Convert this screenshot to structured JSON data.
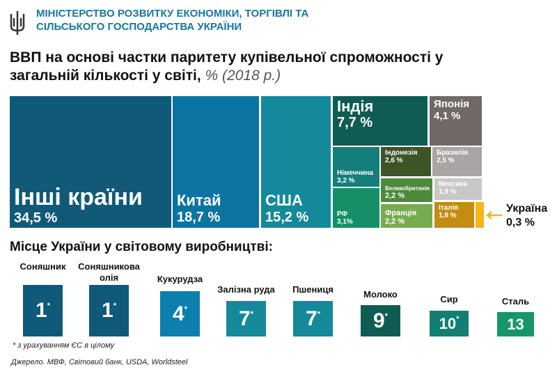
{
  "header": {
    "ministry_line1": "МІНІСТЕРСТВО РОЗВИТКУ ЕКОНОМІКИ, ТОРГІВЛІ ТА",
    "ministry_line2": "СІЛЬСЬКОГО ГОСПОДАРСТВА УКРАЇНИ",
    "logo": "trident-emblem"
  },
  "chart_data": [
    {
      "type": "treemap",
      "title_line1": "ВВП на основі частки паритету купівельної спроможності у",
      "title_line2": "загальній кількості у світі,",
      "title_suffix": "% (2018 р.)",
      "items": [
        {
          "name": "Інші країни",
          "value": 34.5,
          "label": "34,5 %",
          "color": "#105a78"
        },
        {
          "name": "Китай",
          "value": 18.7,
          "label": "18,7 %",
          "color": "#0c74a2"
        },
        {
          "name": "США",
          "value": 15.2,
          "label": "15,2 %",
          "color": "#14899a"
        },
        {
          "name": "Індія",
          "value": 7.7,
          "label": "7,7 %",
          "color": "#0f5c52"
        },
        {
          "name": "Японія",
          "value": 4.1,
          "label": "4,1 %",
          "color": "#706968"
        },
        {
          "name": "Німеччина",
          "value": 3.2,
          "label": "3,2 %",
          "color": "#137e7a"
        },
        {
          "name": "РФ",
          "value": 3.1,
          "label": "3,1%",
          "color": "#168f68"
        },
        {
          "name": "Індонезія",
          "value": 2.6,
          "label": "2,6 %",
          "color": "#3c5426"
        },
        {
          "name": "Великобританія",
          "value": 2.2,
          "label": "2,2 %",
          "color": "#4d8a3c"
        },
        {
          "name": "Франція",
          "value": 2.2,
          "label": "2,2 %",
          "color": "#77ab4f"
        },
        {
          "name": "Бразилія",
          "value": 2.5,
          "label": "2,5 %",
          "color": "#a9a5a4"
        },
        {
          "name": "Мексика",
          "value": 1.9,
          "label": "1,9 %",
          "color": "#c9c8c8"
        },
        {
          "name": "Італія",
          "value": 1.8,
          "label": "1,8 %",
          "color": "#c48d12"
        },
        {
          "name": "Україна",
          "value": 0.3,
          "label": "0,3 %",
          "color": "#f2b619"
        }
      ]
    },
    {
      "type": "bar",
      "title": "Місце України у світовому виробництві:",
      "items": [
        {
          "name": "Соняшник",
          "rank": "1",
          "star": "*",
          "color": "#0f5a78"
        },
        {
          "name": "Соняшникова олія",
          "rank": "1",
          "star": "*",
          "color": "#0f5a78"
        },
        {
          "name": "Кукурудза",
          "rank": "4",
          "star": "*",
          "color": "#0c7fac"
        },
        {
          "name": "Залізна руда",
          "rank": "7",
          "star": "*",
          "color": "#14899a"
        },
        {
          "name": "Пшениця",
          "rank": "7",
          "star": "*",
          "color": "#14899a"
        },
        {
          "name": "Молоко",
          "rank": "9",
          "star": "*",
          "color": "#0f5c52"
        },
        {
          "name": "Сир",
          "rank": "10",
          "star": "*",
          "color": "#137e73"
        },
        {
          "name": "Сталь",
          "rank": "13",
          "star": "",
          "color": "#16966a"
        }
      ]
    }
  ],
  "footnote": "* з урахуванням ЄС в цілому",
  "source": "Джерело. МВФ, Світовий банк, USDA, Worldsteel"
}
